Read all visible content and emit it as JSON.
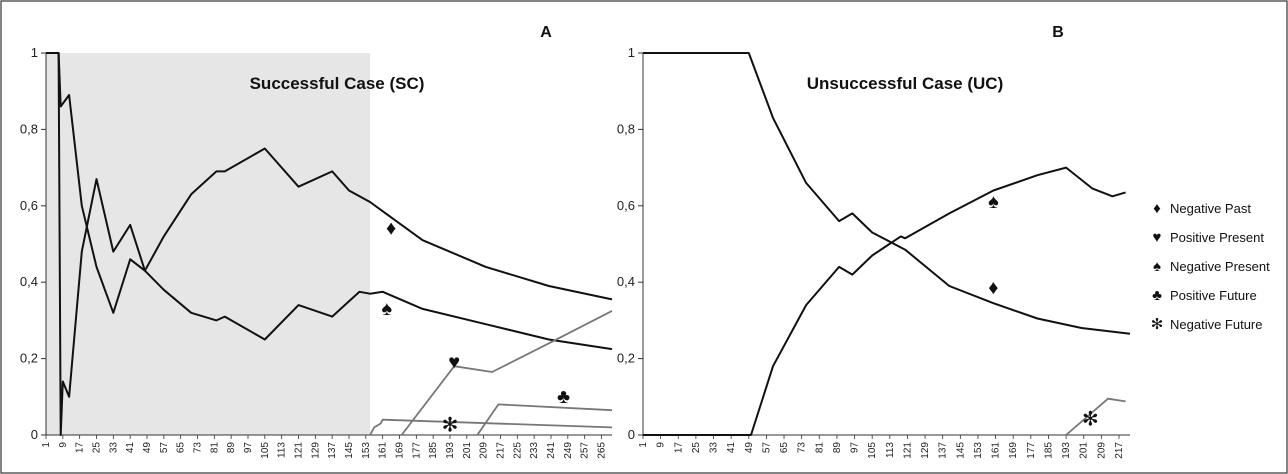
{
  "chart_data": [
    {
      "type": "line",
      "panel_label": "A",
      "title": "Successful Case (SC)",
      "ylim": [
        0,
        1
      ],
      "y_ticks": [
        "0",
        "0,2",
        "0,4",
        "0,6",
        "0,8",
        "1"
      ],
      "x_range": [
        1,
        270
      ],
      "x_ticks": [
        1,
        9,
        17,
        25,
        33,
        41,
        49,
        57,
        65,
        73,
        81,
        89,
        97,
        105,
        113,
        121,
        129,
        137,
        145,
        153,
        161,
        169,
        177,
        185,
        193,
        201,
        209,
        217,
        225,
        233,
        241,
        249,
        257,
        265
      ],
      "shaded_region": {
        "x_start": 1,
        "x_end": 155,
        "color": "#e6e6e6"
      },
      "series": [
        {
          "symbol": "♦",
          "symbol_pos": [
            165,
            0.54
          ],
          "color": "#111111",
          "points": [
            [
              1,
              1
            ],
            [
              7,
              1
            ],
            [
              8,
              0.86
            ],
            [
              12,
              0.89
            ],
            [
              18,
              0.6
            ],
            [
              25,
              0.44
            ],
            [
              33,
              0.32
            ],
            [
              41,
              0.46
            ],
            [
              48,
              0.43
            ],
            [
              57,
              0.52
            ],
            [
              70,
              0.63
            ],
            [
              82,
              0.69
            ],
            [
              86,
              0.69
            ],
            [
              105,
              0.75
            ],
            [
              121,
              0.65
            ],
            [
              137,
              0.69
            ],
            [
              145,
              0.64
            ],
            [
              155,
              0.61
            ],
            [
              180,
              0.51
            ],
            [
              210,
              0.44
            ],
            [
              240,
              0.39
            ],
            [
              270,
              0.355
            ]
          ]
        },
        {
          "symbol": "♠",
          "symbol_pos": [
            163,
            0.33
          ],
          "color": "#111111",
          "points": [
            [
              1,
              1
            ],
            [
              7,
              1
            ],
            [
              8,
              0
            ],
            [
              9,
              0.14
            ],
            [
              12,
              0.1
            ],
            [
              18,
              0.48
            ],
            [
              25,
              0.67
            ],
            [
              33,
              0.48
            ],
            [
              41,
              0.55
            ],
            [
              48,
              0.43
            ],
            [
              57,
              0.38
            ],
            [
              70,
              0.32
            ],
            [
              82,
              0.3
            ],
            [
              86,
              0.31
            ],
            [
              105,
              0.25
            ],
            [
              121,
              0.34
            ],
            [
              137,
              0.31
            ],
            [
              145,
              0.35
            ],
            [
              150,
              0.375
            ],
            [
              155,
              0.37
            ],
            [
              161,
              0.375
            ],
            [
              180,
              0.33
            ],
            [
              210,
              0.29
            ],
            [
              240,
              0.25
            ],
            [
              270,
              0.225
            ]
          ]
        },
        {
          "symbol": "♥",
          "symbol_pos": [
            195,
            0.19
          ],
          "color": "#777777",
          "points": [
            [
              170,
              0
            ],
            [
              195,
              0.18
            ],
            [
              213,
              0.165
            ],
            [
              240,
              0.24
            ],
            [
              270,
              0.325
            ]
          ]
        },
        {
          "symbol": "♣",
          "symbol_pos": [
            247,
            0.1
          ],
          "color": "#777777",
          "points": [
            [
              206,
              0
            ],
            [
              216,
              0.08
            ],
            [
              270,
              0.065
            ]
          ]
        },
        {
          "symbol": "✻",
          "symbol_pos": [
            193,
            0.025
          ],
          "color": "#777777",
          "points": [
            [
              155,
              0
            ],
            [
              157,
              0.02
            ],
            [
              160,
              0.03
            ],
            [
              161,
              0.04
            ],
            [
              270,
              0.02
            ]
          ]
        }
      ]
    },
    {
      "type": "line",
      "panel_label": "B",
      "title": "Unsuccessful Case (UC)",
      "ylim": [
        0,
        1
      ],
      "y_ticks": [
        "0",
        "0,2",
        "0,4",
        "0,6",
        "0,8",
        "1"
      ],
      "x_range": [
        1,
        222
      ],
      "x_ticks": [
        1,
        9,
        17,
        25,
        33,
        41,
        49,
        57,
        65,
        73,
        81,
        89,
        97,
        105,
        113,
        121,
        129,
        137,
        145,
        153,
        161,
        169,
        177,
        185,
        193,
        201,
        209,
        217
      ],
      "series": [
        {
          "symbol": "♦",
          "symbol_pos": [
            160,
            0.385
          ],
          "color": "#111111",
          "points": [
            [
              1,
              1
            ],
            [
              49,
              1
            ],
            [
              60,
              0.83
            ],
            [
              75,
              0.66
            ],
            [
              90,
              0.56
            ],
            [
              96,
              0.58
            ],
            [
              105,
              0.53
            ],
            [
              120,
              0.485
            ],
            [
              140,
              0.39
            ],
            [
              160,
              0.345
            ],
            [
              180,
              0.305
            ],
            [
              200,
              0.28
            ],
            [
              222,
              0.265
            ]
          ]
        },
        {
          "symbol": "♠",
          "symbol_pos": [
            160,
            0.61
          ],
          "color": "#111111",
          "points": [
            [
              1,
              0
            ],
            [
              50,
              0
            ],
            [
              60,
              0.18
            ],
            [
              75,
              0.34
            ],
            [
              90,
              0.44
            ],
            [
              96,
              0.42
            ],
            [
              105,
              0.47
            ],
            [
              118,
              0.52
            ],
            [
              120,
              0.515
            ],
            [
              140,
              0.58
            ],
            [
              160,
              0.64
            ],
            [
              180,
              0.68
            ],
            [
              193,
              0.7
            ],
            [
              205,
              0.645
            ],
            [
              214,
              0.625
            ],
            [
              220,
              0.635
            ]
          ]
        },
        {
          "symbol": "✻",
          "symbol_pos": [
            204,
            0.04
          ],
          "color": "#777777",
          "points": [
            [
              193,
              0
            ],
            [
              212,
              0.095
            ],
            [
              220,
              0.088
            ]
          ]
        }
      ]
    }
  ],
  "legend": [
    {
      "symbol": "♦",
      "label": "Negative Past"
    },
    {
      "symbol": "♥",
      "label": "Positive Present"
    },
    {
      "symbol": "♠",
      "label": "Negative Present"
    },
    {
      "symbol": "♣",
      "label": "Positive Future"
    },
    {
      "symbol": "✻",
      "label": "Negative Future"
    }
  ]
}
